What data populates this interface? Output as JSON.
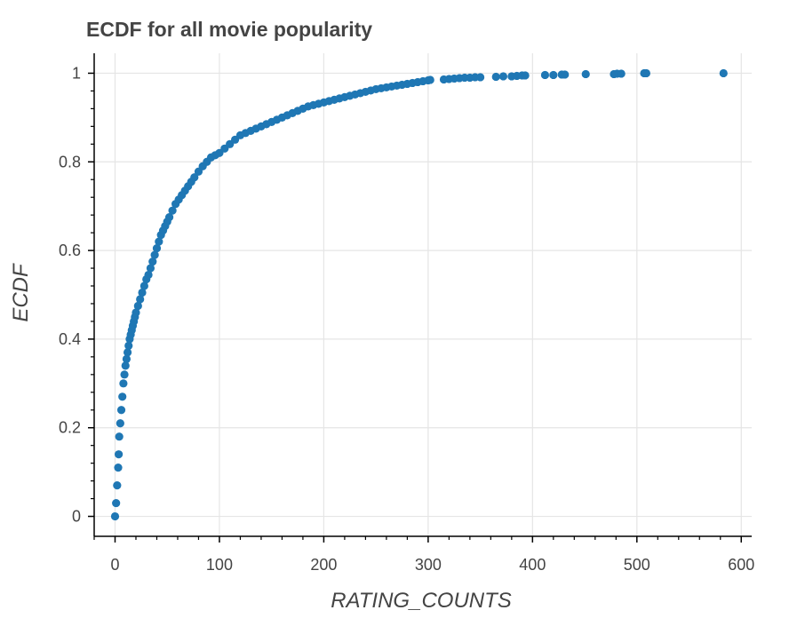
{
  "chart_data": {
    "type": "scatter",
    "title": "ECDF for all movie popularity",
    "xlabel": "RATING_COUNTS",
    "ylabel": "ECDF",
    "xlim": [
      -20,
      610
    ],
    "ylim": [
      -0.045,
      1.045
    ],
    "x_ticks": [
      0,
      100,
      200,
      300,
      400,
      500,
      600
    ],
    "x_tick_labels": [
      "0",
      "100",
      "200",
      "300",
      "400",
      "500",
      "600"
    ],
    "y_ticks": [
      0,
      0.2,
      0.4,
      0.6,
      0.8,
      1
    ],
    "y_tick_labels": [
      "0",
      "0.2",
      "0.4",
      "0.6",
      "0.8",
      "1"
    ],
    "grid": true,
    "marker_color": "#1f77b4",
    "series": [
      {
        "x": [
          0,
          1,
          2,
          3,
          3.5,
          4,
          5,
          6,
          7,
          8,
          9,
          10,
          11,
          12,
          13,
          14,
          15,
          16,
          17,
          18,
          19,
          20,
          22,
          24,
          26,
          28,
          30,
          32,
          34,
          36,
          38,
          40,
          42,
          44,
          46,
          48,
          50,
          52,
          55,
          58,
          61,
          64,
          67,
          70,
          73,
          76,
          80,
          84,
          88,
          92,
          96,
          100,
          105,
          110,
          115,
          120,
          125,
          130,
          135,
          140,
          145,
          150,
          155,
          160,
          165,
          170,
          175,
          180,
          185,
          190,
          195,
          200,
          205,
          210,
          215,
          220,
          225,
          230,
          235,
          240,
          245,
          250,
          255,
          260,
          265,
          270,
          275,
          280,
          285,
          290,
          295,
          300,
          302,
          315,
          320,
          325,
          330,
          335,
          340,
          345,
          350,
          365,
          372,
          380,
          385,
          390,
          393,
          412,
          420,
          428,
          431,
          451,
          478,
          481,
          485,
          507,
          509,
          583
        ],
        "y": [
          0.0,
          0.03,
          0.07,
          0.11,
          0.14,
          0.18,
          0.21,
          0.24,
          0.27,
          0.3,
          0.32,
          0.34,
          0.355,
          0.37,
          0.385,
          0.4,
          0.41,
          0.42,
          0.43,
          0.44,
          0.45,
          0.46,
          0.475,
          0.49,
          0.505,
          0.52,
          0.535,
          0.545,
          0.56,
          0.575,
          0.59,
          0.605,
          0.62,
          0.635,
          0.645,
          0.655,
          0.665,
          0.675,
          0.69,
          0.705,
          0.715,
          0.725,
          0.735,
          0.745,
          0.755,
          0.765,
          0.778,
          0.79,
          0.8,
          0.81,
          0.815,
          0.82,
          0.83,
          0.84,
          0.85,
          0.86,
          0.865,
          0.87,
          0.875,
          0.88,
          0.885,
          0.89,
          0.895,
          0.9,
          0.905,
          0.91,
          0.915,
          0.92,
          0.925,
          0.928,
          0.931,
          0.934,
          0.937,
          0.94,
          0.943,
          0.946,
          0.949,
          0.952,
          0.955,
          0.958,
          0.961,
          0.964,
          0.966,
          0.968,
          0.97,
          0.972,
          0.974,
          0.976,
          0.978,
          0.98,
          0.982,
          0.984,
          0.985,
          0.986,
          0.987,
          0.988,
          0.989,
          0.99,
          0.99,
          0.991,
          0.991,
          0.992,
          0.993,
          0.993,
          0.994,
          0.995,
          0.995,
          0.996,
          0.996,
          0.997,
          0.997,
          0.998,
          0.998,
          0.999,
          0.999,
          1.0,
          1.0,
          1.0
        ]
      }
    ]
  }
}
